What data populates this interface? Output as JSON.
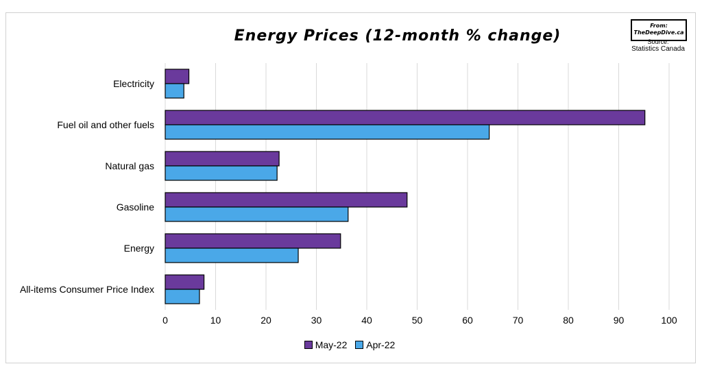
{
  "logo": {
    "line1": "From:",
    "line2": "TheDeepDive.ca"
  },
  "source": {
    "label": "Source:",
    "value": "Statistics Canada"
  },
  "colors": {
    "may": "#6a3a9c",
    "apr": "#4aa8e8",
    "grid": "#d9d9d9",
    "border": "#000000"
  },
  "chart_data": {
    "type": "bar",
    "orientation": "horizontal",
    "title": "Energy Prices (12-month % change)",
    "categories": [
      "Electricity",
      "Fuel oil and other fuels",
      "Natural gas",
      "Gasoline",
      "Energy",
      "All-items Consumer Price Index"
    ],
    "series": [
      {
        "name": "May-22",
        "values": [
          4.7,
          95.2,
          22.6,
          48.0,
          34.8,
          7.7
        ]
      },
      {
        "name": "Apr-22",
        "values": [
          3.7,
          64.3,
          22.2,
          36.3,
          26.4,
          6.8
        ]
      }
    ],
    "xlim": [
      0,
      100
    ],
    "xticks": [
      0,
      10,
      20,
      30,
      40,
      50,
      60,
      70,
      80,
      90,
      100
    ],
    "grid": "vertical",
    "legend": "bottom"
  }
}
